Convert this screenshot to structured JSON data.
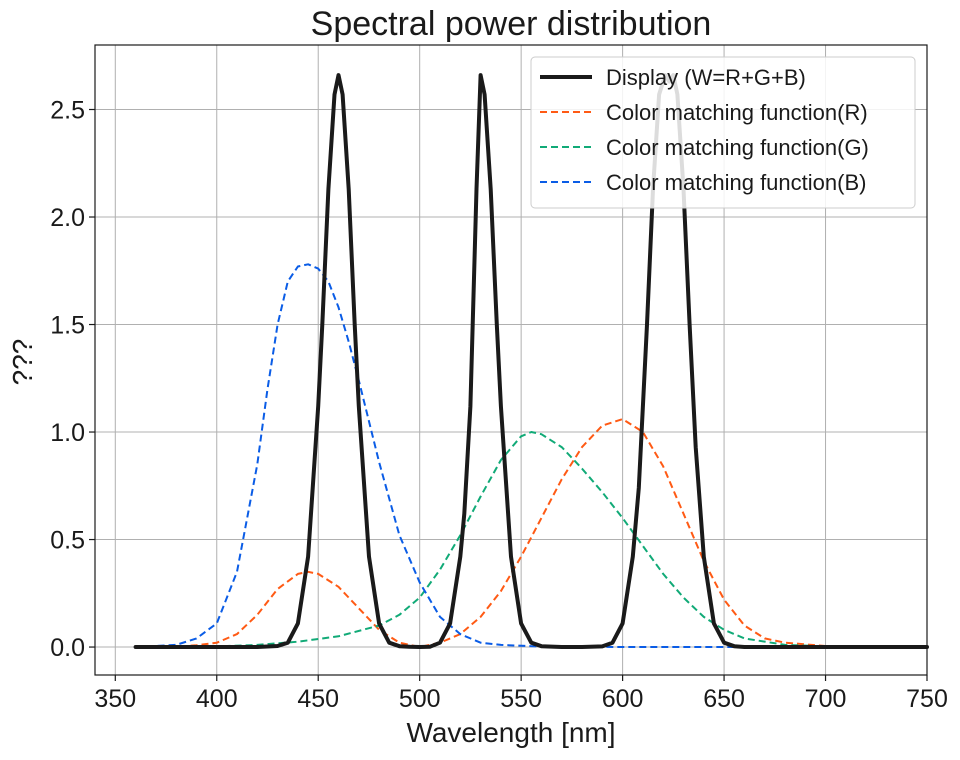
{
  "chart_data": {
    "type": "line",
    "title": "Spectral power distribution",
    "xlabel": "Wavelength [nm]",
    "ylabel": "???",
    "xlim": [
      340,
      750
    ],
    "ylim": [
      -0.13,
      2.8
    ],
    "grid": true,
    "legend_position": "top-right",
    "x_ticks": [
      350,
      400,
      450,
      500,
      550,
      600,
      650,
      700,
      750
    ],
    "x_tick_labels": [
      "350",
      "400",
      "450",
      "500",
      "550",
      "600",
      "650",
      "700",
      "750"
    ],
    "y_ticks": [
      0.0,
      0.5,
      1.0,
      1.5,
      2.0,
      2.5
    ],
    "y_tick_labels": [
      "0.0",
      "0.5",
      "1.0",
      "1.5",
      "2.0",
      "2.5"
    ],
    "series": [
      {
        "name": "Display (W=R+G+B)",
        "color": "#1a1a1a",
        "style": "solid",
        "x": [
          360,
          380,
          400,
          420,
          430,
          435,
          440,
          445,
          450,
          452,
          455,
          458,
          460,
          462,
          465,
          468,
          470,
          475,
          480,
          485,
          490,
          495,
          500,
          505,
          510,
          515,
          520,
          522,
          525,
          528,
          530,
          532,
          535,
          538,
          540,
          545,
          550,
          555,
          560,
          570,
          580,
          590,
          595,
          600,
          605,
          608,
          612,
          615,
          618,
          621,
          623,
          625,
          627,
          630,
          633,
          636,
          640,
          645,
          650,
          655,
          660,
          680,
          700,
          720,
          750
        ],
        "y": [
          0,
          0,
          0,
          0,
          0.005,
          0.02,
          0.11,
          0.42,
          1.12,
          1.5,
          2.13,
          2.57,
          2.66,
          2.57,
          2.13,
          1.5,
          1.12,
          0.42,
          0.11,
          0.02,
          0.004,
          0.001,
          0,
          0.001,
          0.02,
          0.11,
          0.42,
          0.62,
          1.12,
          2.13,
          2.66,
          2.57,
          2.13,
          1.5,
          1.12,
          0.42,
          0.11,
          0.02,
          0.004,
          0,
          0,
          0.003,
          0.02,
          0.11,
          0.42,
          0.74,
          1.5,
          2.13,
          2.57,
          2.66,
          2.63,
          2.66,
          2.57,
          2.13,
          1.5,
          0.93,
          0.42,
          0.11,
          0.02,
          0.004,
          0,
          0,
          0,
          0,
          0
        ]
      },
      {
        "name": "Color matching function(R)",
        "color": "#ff5a14",
        "style": "dashed",
        "x": [
          360,
          380,
          390,
          400,
          410,
          420,
          430,
          440,
          445,
          450,
          460,
          470,
          480,
          490,
          500,
          510,
          520,
          530,
          540,
          550,
          560,
          570,
          580,
          590,
          600,
          610,
          620,
          630,
          640,
          650,
          660,
          670,
          680,
          700,
          720,
          750
        ],
        "y": [
          0,
          0.002,
          0.008,
          0.02,
          0.06,
          0.15,
          0.27,
          0.34,
          0.35,
          0.34,
          0.28,
          0.18,
          0.08,
          0.02,
          0,
          0.02,
          0.06,
          0.14,
          0.26,
          0.42,
          0.6,
          0.78,
          0.93,
          1.03,
          1.06,
          1.0,
          0.84,
          0.62,
          0.4,
          0.22,
          0.1,
          0.04,
          0.02,
          0.005,
          0.001,
          0
        ]
      },
      {
        "name": "Color matching function(G)",
        "color": "#11aa77",
        "style": "dashed",
        "x": [
          360,
          380,
          400,
          420,
          440,
          460,
          480,
          490,
          500,
          510,
          520,
          530,
          540,
          550,
          555,
          560,
          570,
          580,
          590,
          600,
          610,
          620,
          630,
          640,
          650,
          660,
          680,
          700,
          720,
          750
        ],
        "y": [
          0,
          0,
          0.003,
          0.01,
          0.025,
          0.05,
          0.1,
          0.15,
          0.23,
          0.36,
          0.52,
          0.7,
          0.87,
          0.98,
          1.0,
          0.99,
          0.93,
          0.83,
          0.72,
          0.6,
          0.47,
          0.34,
          0.23,
          0.14,
          0.08,
          0.04,
          0.01,
          0.003,
          0.001,
          0
        ]
      },
      {
        "name": "Color matching function(B)",
        "color": "#0a5ce6",
        "style": "dashed",
        "x": [
          360,
          380,
          390,
          400,
          410,
          420,
          425,
          430,
          435,
          440,
          445,
          450,
          455,
          460,
          465,
          470,
          480,
          490,
          500,
          510,
          520,
          530,
          540,
          560,
          600,
          750
        ],
        "y": [
          0,
          0.01,
          0.04,
          0.11,
          0.35,
          0.85,
          1.2,
          1.5,
          1.7,
          1.77,
          1.78,
          1.76,
          1.7,
          1.58,
          1.42,
          1.24,
          0.86,
          0.52,
          0.3,
          0.14,
          0.06,
          0.02,
          0.01,
          0.002,
          0,
          0
        ]
      }
    ]
  }
}
